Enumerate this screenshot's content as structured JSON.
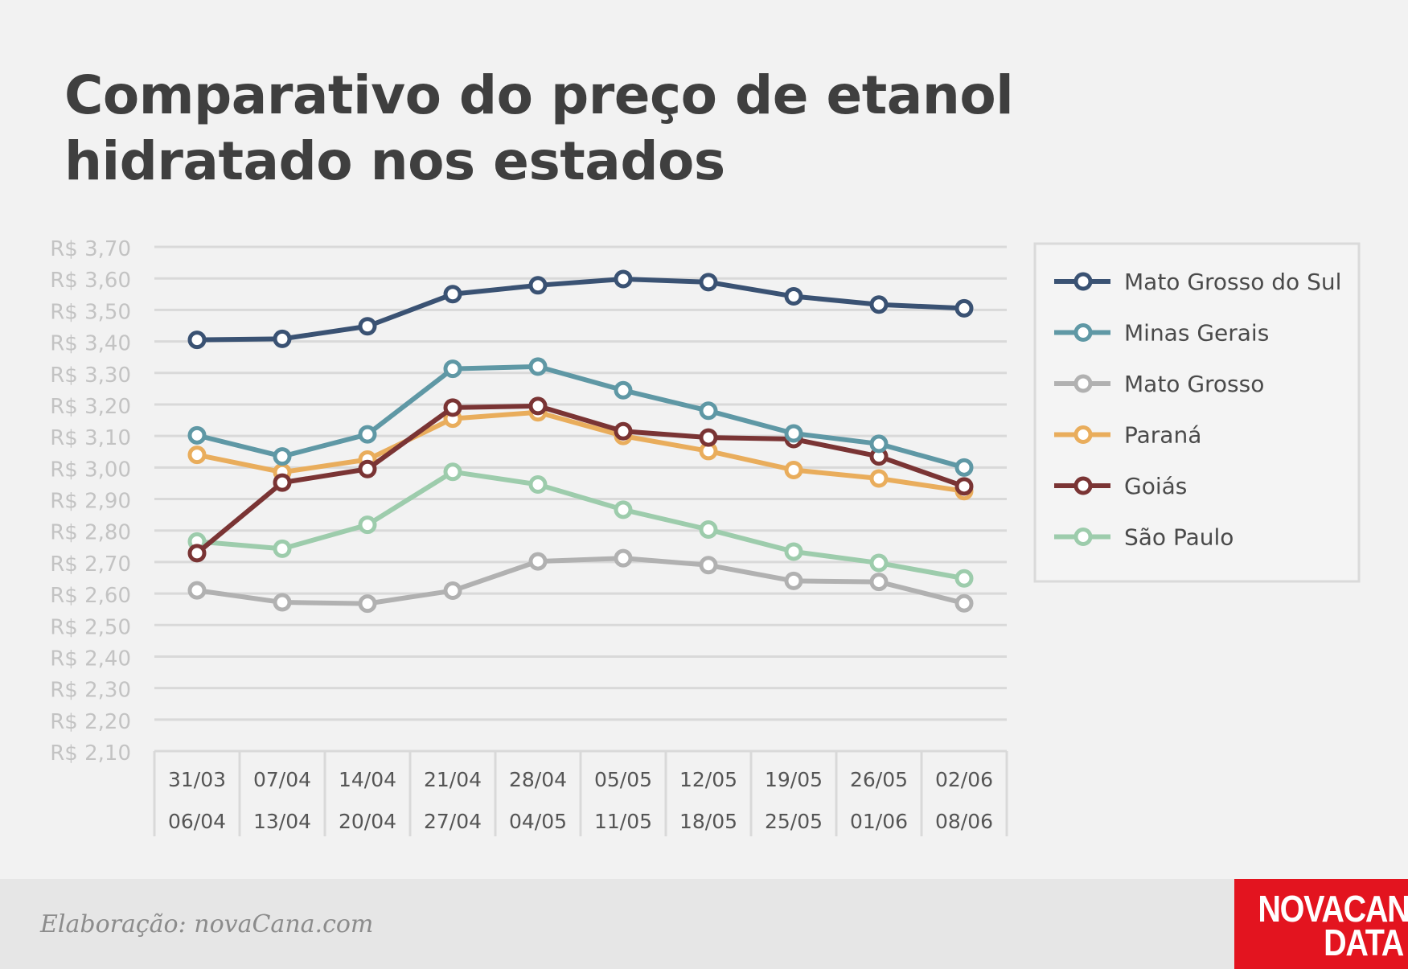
{
  "title": "Comparativo do preço de etanol hidratado nos estados",
  "credit": "Elaboração: novaCana.com",
  "logo": {
    "line1": "NOVACANA",
    "line2": "DATA"
  },
  "chart_data": {
    "type": "line",
    "title": "Comparativo do preço de etanol hidratado nos estados",
    "categories": [
      [
        "31/03",
        "06/04"
      ],
      [
        "07/04",
        "13/04"
      ],
      [
        "14/04",
        "20/04"
      ],
      [
        "21/04",
        "27/04"
      ],
      [
        "28/04",
        "04/05"
      ],
      [
        "05/05",
        "11/05"
      ],
      [
        "12/05",
        "18/05"
      ],
      [
        "19/05",
        "25/05"
      ],
      [
        "26/05",
        "01/06"
      ],
      [
        "02/06",
        "08/06"
      ]
    ],
    "ylim": [
      2.1,
      3.7
    ],
    "yticks": [
      3.7,
      3.6,
      3.5,
      3.4,
      3.3,
      3.2,
      3.1,
      3.0,
      2.9,
      2.8,
      2.7,
      2.6,
      2.5,
      2.4,
      2.3,
      2.2,
      2.1
    ],
    "ytick_labels": [
      "R$ 3,70",
      "R$ 3,60",
      "R$ 3,50",
      "R$ 3,40",
      "R$ 3,30",
      "R$ 3,20",
      "R$ 3,10",
      "R$ 3,00",
      "R$ 2,90",
      "R$ 2,80",
      "R$ 2,70",
      "R$ 2,60",
      "R$ 2,50",
      "R$ 2,40",
      "R$ 2,30",
      "R$ 2,20",
      "R$ 2,10"
    ],
    "grid": true,
    "legend": "right",
    "series": [
      {
        "name": "Mato Grosso do Sul",
        "color": "#3a5273",
        "values": [
          3.405,
          3.408,
          3.448,
          3.55,
          3.578,
          3.598,
          3.588,
          3.543,
          3.517,
          3.505
        ]
      },
      {
        "name": "Minas Gerais",
        "color": "#5f98a5",
        "values": [
          3.102,
          3.035,
          3.105,
          3.313,
          3.32,
          3.245,
          3.18,
          3.108,
          3.075,
          3.0
        ]
      },
      {
        "name": "Mato Grosso",
        "color": "#b1b1b1",
        "values": [
          2.61,
          2.572,
          2.568,
          2.609,
          2.702,
          2.712,
          2.69,
          2.64,
          2.637,
          2.569
        ]
      },
      {
        "name": "Paraná",
        "color": "#e9ad5c",
        "values": [
          3.04,
          2.985,
          3.025,
          3.155,
          3.175,
          3.1,
          3.052,
          2.992,
          2.965,
          2.925
        ]
      },
      {
        "name": "Goiás",
        "color": "#7a3434",
        "values": [
          2.728,
          2.952,
          2.995,
          3.19,
          3.195,
          3.115,
          3.095,
          3.09,
          3.035,
          2.94
        ]
      },
      {
        "name": "São Paulo",
        "color": "#9dccac",
        "values": [
          2.765,
          2.742,
          2.818,
          2.986,
          2.946,
          2.866,
          2.803,
          2.733,
          2.697,
          2.648
        ]
      }
    ]
  }
}
